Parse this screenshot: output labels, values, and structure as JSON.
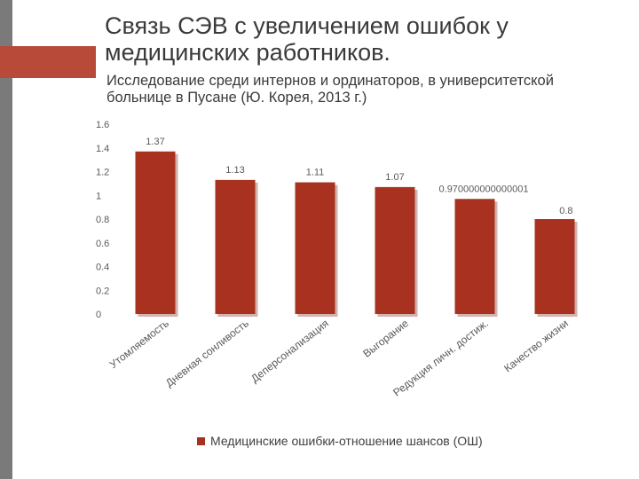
{
  "slide": {
    "title": "Связь СЭВ с увеличением ошибок у медицинских работников.",
    "subtitle": "Исследование среди интернов и ординаторов, в университетской больнице в Пусане (Ю. Корея, 2013 г.)"
  },
  "colors": {
    "bar": "#a8321f",
    "bar_shadow": "#7d2416",
    "accent": "#b84a3a",
    "sidebar": "#7a7a7a",
    "text": "#3a3a3a"
  },
  "chart_data": {
    "type": "bar",
    "categories": [
      "Утомляемость",
      "Дневная сонливость",
      "Деперсонализация",
      "Выгорание",
      "Редукция личн. достиж.",
      "Качество жизни"
    ],
    "series": [
      {
        "name": "Медицинские ошибки-отношение шансов (ОШ)",
        "values": [
          1.37,
          1.13,
          1.11,
          1.07,
          0.970000000000001,
          0.8
        ],
        "labels": [
          "1.37",
          "1.13",
          "1.11",
          "1.07",
          "0.970000000000001",
          "0.8"
        ]
      }
    ],
    "yticks": [
      "0",
      "0.2",
      "0.4",
      "0.6",
      "0.8",
      "1",
      "1.2",
      "1.4",
      "1.6"
    ],
    "ylim": [
      0,
      1.6
    ],
    "grid": false,
    "legend_position": "bottom"
  }
}
